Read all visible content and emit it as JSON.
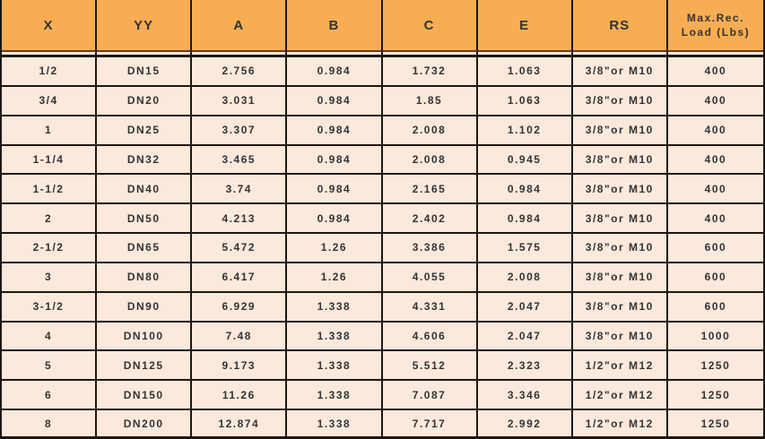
{
  "chart_data": {
    "type": "table",
    "columns": [
      "X",
      "YY",
      "A",
      "B",
      "C",
      "E",
      "RS",
      "Max.Rec.\nLoad (Lbs)"
    ],
    "rows": [
      [
        "1/2",
        "DN15",
        "2.756",
        "0.984",
        "1.732",
        "1.063",
        "3/8\"or M10",
        "400"
      ],
      [
        "3/4",
        "DN20",
        "3.031",
        "0.984",
        "1.85",
        "1.063",
        "3/8\"or M10",
        "400"
      ],
      [
        "1",
        "DN25",
        "3.307",
        "0.984",
        "2.008",
        "1.102",
        "3/8\"or M10",
        "400"
      ],
      [
        "1-1/4",
        "DN32",
        "3.465",
        "0.984",
        "2.008",
        "0.945",
        "3/8\"or M10",
        "400"
      ],
      [
        "1-1/2",
        "DN40",
        "3.74",
        "0.984",
        "2.165",
        "0.984",
        "3/8\"or M10",
        "400"
      ],
      [
        "2",
        "DN50",
        "4.213",
        "0.984",
        "2.402",
        "0.984",
        "3/8\"or M10",
        "400"
      ],
      [
        "2-1/2",
        "DN65",
        "5.472",
        "1.26",
        "3.386",
        "1.575",
        "3/8\"or M10",
        "600"
      ],
      [
        "3",
        "DN80",
        "6.417",
        "1.26",
        "4.055",
        "2.008",
        "3/8\"or M10",
        "600"
      ],
      [
        "3-1/2",
        "DN90",
        "6.929",
        "1.338",
        "4.331",
        "2.047",
        "3/8\"or M10",
        "600"
      ],
      [
        "4",
        "DN100",
        "7.48",
        "1.338",
        "4.606",
        "2.047",
        "3/8\"or M10",
        "1000"
      ],
      [
        "5",
        "DN125",
        "9.173",
        "1.338",
        "5.512",
        "2.323",
        "1/2\"or M12",
        "1250"
      ],
      [
        "6",
        "DN150",
        "11.26",
        "1.338",
        "7.087",
        "3.346",
        "1/2\"or M12",
        "1250"
      ],
      [
        "8",
        "DN200",
        "12.874",
        "1.338",
        "7.717",
        "2.992",
        "1/2\"or M12",
        "1250"
      ]
    ]
  },
  "colors": {
    "header_bg": "#F7AE53",
    "row_bg": "#FBE9DC",
    "grid_border": "#1E1712",
    "header_rule": "#6B3A26",
    "text": "#333333"
  }
}
